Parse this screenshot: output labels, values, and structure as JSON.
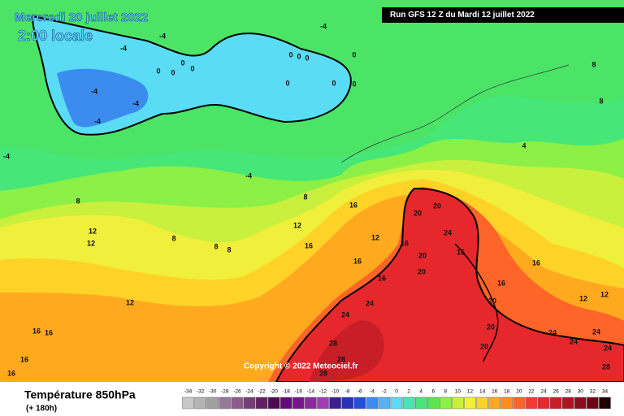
{
  "header": {
    "date": "Mercredi 20 juillet 2022",
    "time": "2:00 locale",
    "run": "Run GFS 12 Z du Mardi 12 juillet 2022"
  },
  "copyright": "Copyright © 2022 Meteociel.fr",
  "legend": {
    "title": "Température 850hPa",
    "subtitle": "(+ 180h)",
    "scale": [
      {
        "value": -34,
        "color": "#c8c8c8"
      },
      {
        "value": -32,
        "color": "#b4b4b4"
      },
      {
        "value": -30,
        "color": "#a0a0a0"
      },
      {
        "value": -28,
        "color": "#96789a"
      },
      {
        "value": -26,
        "color": "#8c5a8c"
      },
      {
        "value": -24,
        "color": "#783c78"
      },
      {
        "value": -22,
        "color": "#641e64"
      },
      {
        "value": -20,
        "color": "#500a50"
      },
      {
        "value": -18,
        "color": "#640a78"
      },
      {
        "value": -16,
        "color": "#78148c"
      },
      {
        "value": -14,
        "color": "#8c28a0"
      },
      {
        "value": -12,
        "color": "#a03cb4"
      },
      {
        "value": -10,
        "color": "#3c1e8c"
      },
      {
        "value": -8,
        "color": "#2832b4"
      },
      {
        "value": -6,
        "color": "#1e50dc"
      },
      {
        "value": -4,
        "color": "#3c8cf0"
      },
      {
        "value": -2,
        "color": "#50b4f5"
      },
      {
        "value": 0,
        "color": "#5adcf5"
      },
      {
        "value": 2,
        "color": "#46e6b4"
      },
      {
        "value": 4,
        "color": "#46e678"
      },
      {
        "value": 6,
        "color": "#5ae650"
      },
      {
        "value": 8,
        "color": "#8cf046"
      },
      {
        "value": 10,
        "color": "#c8f03c"
      },
      {
        "value": 12,
        "color": "#f0f03c"
      },
      {
        "value": 14,
        "color": "#ffd228"
      },
      {
        "value": 16,
        "color": "#ffaa1e"
      },
      {
        "value": 18,
        "color": "#ff8c1e"
      },
      {
        "value": 20,
        "color": "#ff6428"
      },
      {
        "value": 22,
        "color": "#f03c32"
      },
      {
        "value": 24,
        "color": "#e6282d"
      },
      {
        "value": 26,
        "color": "#c81e28"
      },
      {
        "value": 28,
        "color": "#aa1423"
      },
      {
        "value": 30,
        "color": "#8c0a1e"
      },
      {
        "value": 32,
        "color": "#6e0514"
      },
      {
        "value": 34,
        "color": "#1e0000"
      }
    ]
  },
  "contour_labels": [
    -4,
    -4,
    -4,
    -4,
    -4,
    -4,
    -4,
    -4,
    0,
    0,
    0,
    0,
    0,
    0,
    0,
    0,
    0,
    0,
    0,
    8,
    8,
    4,
    8,
    8,
    12,
    12,
    8,
    8,
    8,
    12,
    16,
    16,
    12,
    16,
    16,
    20,
    20,
    24,
    16,
    20,
    20,
    16,
    16,
    16,
    20,
    20,
    20,
    12,
    16,
    16,
    16,
    16,
    24,
    24,
    28,
    28,
    28,
    24,
    24,
    24,
    24,
    12,
    12,
    28
  ]
}
